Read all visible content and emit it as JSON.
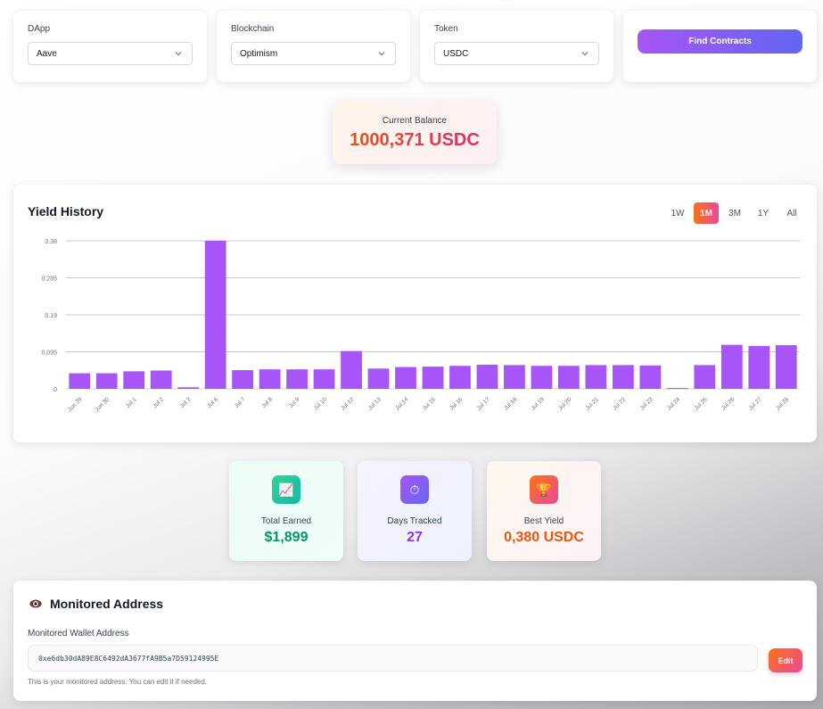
{
  "filters": {
    "dapp": {
      "label": "DApp",
      "value": "Aave"
    },
    "blockchain": {
      "label": "Blockchain",
      "value": "Optimism"
    },
    "token": {
      "label": "Token",
      "value": "USDC"
    },
    "find_button": "Find Contracts"
  },
  "balance": {
    "label": "Current Balance",
    "value": "1000,371 USDC"
  },
  "yield_history": {
    "title": "Yield History",
    "ranges": [
      "1W",
      "1M",
      "3M",
      "1Y",
      "All"
    ],
    "active_range": "1M"
  },
  "chart_data": {
    "type": "bar",
    "categories": [
      "Jun 29",
      "Jun 30",
      "Jul 1",
      "Jul 2",
      "Jul 3",
      "Jul 6",
      "Jul 7",
      "Jul 8",
      "Jul 9",
      "Jul 10",
      "Jul 12",
      "Jul 13",
      "Jul 14",
      "Jul 15",
      "Jul 16",
      "Jul 17",
      "Jul 18",
      "Jul 19",
      "Jul 20",
      "Jul 21",
      "Jul 22",
      "Jul 23",
      "Jul 24",
      "Jul 25",
      "Jul 26",
      "Jul 27",
      "Jul 28"
    ],
    "values": [
      0.04,
      0.04,
      0.045,
      0.047,
      0.004,
      0.38,
      0.048,
      0.05,
      0.05,
      0.05,
      0.097,
      0.052,
      0.056,
      0.057,
      0.059,
      0.062,
      0.061,
      0.059,
      0.059,
      0.061,
      0.061,
      0.06,
      0.002,
      0.061,
      0.113,
      0.11,
      0.112
    ],
    "yticks": [
      "0",
      "0.095",
      "0.19",
      "0.285",
      "0.38"
    ],
    "ylim": [
      0,
      0.38
    ],
    "bar_color": "#a855f7",
    "grid": true
  },
  "stats": [
    {
      "label": "Total Earned",
      "value": "$1,899",
      "icon": "chart-up-icon",
      "glyph": "📈",
      "color": "#059669"
    },
    {
      "label": "Days Tracked",
      "value": "27",
      "icon": "stopwatch-icon",
      "glyph": "⏱",
      "color": "#9333ea"
    },
    {
      "label": "Best Yield",
      "value": "0,380 USDC",
      "icon": "trophy-icon",
      "glyph": "🏆",
      "color": "#ea580c"
    }
  ],
  "monitor": {
    "title": "Monitored Address",
    "field_label": "Monitored Wallet Address",
    "address": "0xe6db30dA89E8C6492dA3677fA9B5a7D59124995E",
    "edit_button": "Edit",
    "help": "This is your monitored address. You can edit it if needed."
  }
}
